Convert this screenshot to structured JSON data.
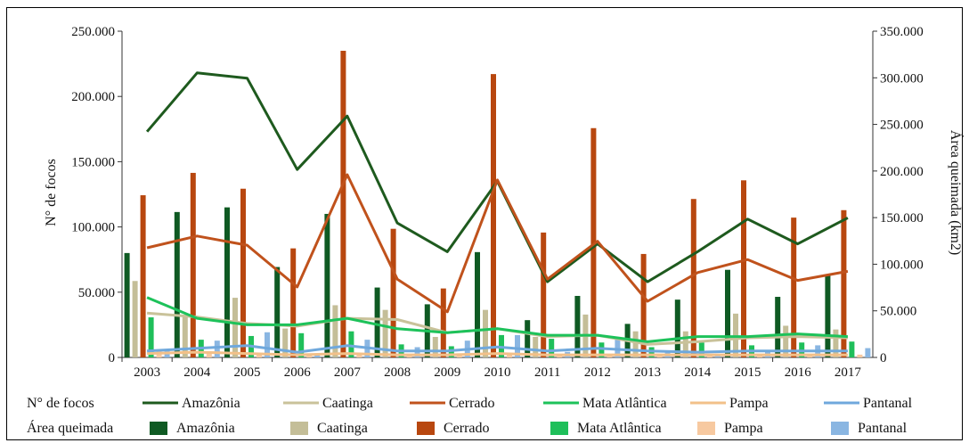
{
  "chart_data": {
    "type": "bar+line",
    "categories": [
      "2003",
      "2004",
      "2005",
      "2006",
      "2007",
      "2008",
      "2009",
      "2010",
      "2011",
      "2012",
      "2013",
      "2014",
      "2015",
      "2016",
      "2017"
    ],
    "ylabel_left": "N° de focos",
    "ylabel_right": "Área queimada (km2)",
    "ylim_left": [
      0,
      250000
    ],
    "ylim_right": [
      0,
      350000
    ],
    "yticks_left": [
      "0",
      "50.000",
      "100.000",
      "150.000",
      "200.000",
      "250.000"
    ],
    "yticks_right": [
      "0",
      "50.000",
      "100.000",
      "150.000",
      "200.000",
      "250.000",
      "300.000",
      "350.000"
    ],
    "legend": {
      "focos_label": "N° de focos",
      "area_label": "Área queimada"
    },
    "line_series": [
      {
        "name": "Amazônia",
        "color": "#1e5a1e",
        "values": [
          173000,
          218000,
          214000,
          144000,
          185000,
          103000,
          81000,
          135000,
          58000,
          87000,
          58000,
          81000,
          106000,
          87000,
          107000
        ]
      },
      {
        "name": "Caatinga",
        "color": "#c9c29a",
        "values": [
          34000,
          31000,
          26000,
          24000,
          30000,
          29000,
          19000,
          22000,
          16000,
          17000,
          10000,
          12000,
          15000,
          16000,
          15000
        ]
      },
      {
        "name": "Cerrado",
        "color": "#c0521c",
        "values": [
          84000,
          93000,
          86000,
          54000,
          140000,
          60000,
          35000,
          136000,
          60000,
          89000,
          43000,
          65000,
          75000,
          59000,
          66000
        ]
      },
      {
        "name": "Mata Atlântica",
        "color": "#1dc25a",
        "values": [
          46000,
          30000,
          25000,
          25000,
          30000,
          22000,
          19000,
          22000,
          17000,
          17000,
          12000,
          16000,
          16000,
          18000,
          16000
        ]
      },
      {
        "name": "Pampa",
        "color": "#f2c089",
        "values": [
          3000,
          4000,
          3000,
          2000,
          3000,
          2000,
          2000,
          3000,
          2000,
          2000,
          2000,
          2000,
          2000,
          2000,
          2000
        ]
      },
      {
        "name": "Pantanal",
        "color": "#6fa8dc",
        "values": [
          5000,
          7000,
          9000,
          4000,
          9000,
          5000,
          5000,
          8000,
          5000,
          7000,
          5000,
          4000,
          5000,
          5000,
          5000
        ]
      }
    ],
    "bar_series": [
      {
        "name": "Amazônia",
        "color": "#0f5a23",
        "values": [
          112000,
          156000,
          161000,
          97000,
          154000,
          75000,
          57000,
          113000,
          40000,
          66000,
          36000,
          62000,
          94000,
          65000,
          89000
        ]
      },
      {
        "name": "Caatinga",
        "color": "#c4be98",
        "values": [
          82000,
          44000,
          64000,
          31000,
          56000,
          51000,
          22000,
          51000,
          22000,
          46000,
          28000,
          28000,
          47000,
          34000,
          30000
        ]
      },
      {
        "name": "Cerrado",
        "color": "#b8470f",
        "values": [
          174000,
          198000,
          181000,
          117000,
          329000,
          138000,
          74000,
          304000,
          134000,
          246000,
          111000,
          170000,
          190000,
          150000,
          158000
        ]
      },
      {
        "name": "Mata Atlântica",
        "color": "#1fbf5a",
        "values": [
          43000,
          19000,
          23000,
          26000,
          28000,
          14000,
          12000,
          24000,
          20000,
          16000,
          11000,
          16000,
          13000,
          16000,
          17000
        ]
      },
      {
        "name": "Pampa",
        "color": "#f7c9a0",
        "values": [
          8000,
          6000,
          4000,
          4000,
          5000,
          3000,
          3000,
          3000,
          3000,
          3000,
          2000,
          3000,
          3000,
          3000,
          3000
        ]
      },
      {
        "name": "Pantanal",
        "color": "#8ab6e2",
        "values": [
          9000,
          18000,
          27000,
          4000,
          19000,
          11000,
          18000,
          24000,
          6000,
          20000,
          7000,
          4000,
          6000,
          13000,
          10000
        ]
      }
    ]
  }
}
